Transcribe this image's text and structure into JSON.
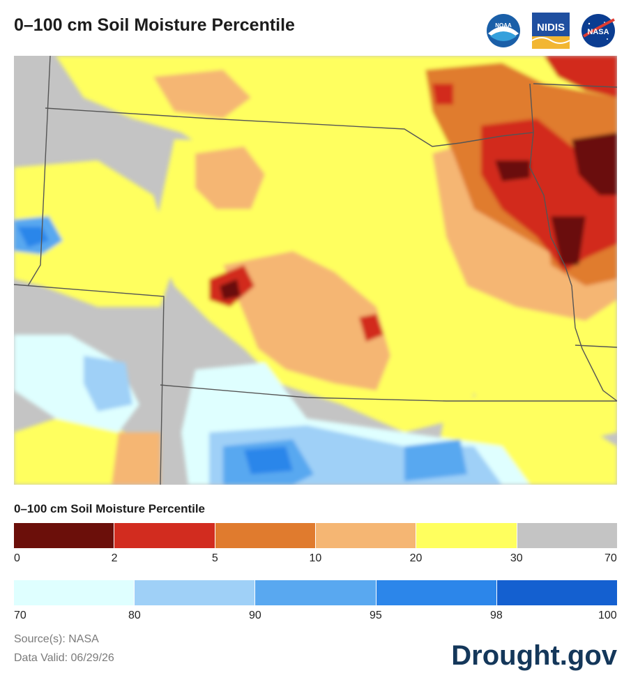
{
  "title": "0–100 cm Soil Moisture Percentile",
  "logos": [
    {
      "name": "noaa-logo",
      "text": "NOAA",
      "color": "#1a5fa8"
    },
    {
      "name": "nidis-logo",
      "text": "NIDIS",
      "color": "#1f4fa0"
    },
    {
      "name": "nasa-logo",
      "text": "NASA",
      "color": "#0b3d91"
    }
  ],
  "map": {
    "colors": {
      "c0_2": "#6b0f0a",
      "c2_5": "#d22c1f",
      "c5_10": "#e07b2e",
      "c10_20": "#f5b673",
      "c20_30": "#ffff5e",
      "c30_70": "#c4c4c4",
      "c70_80": "#dfffff",
      "c80_90": "#9fd0f7",
      "c90_95": "#59a8f0",
      "c95_98": "#2c86ea",
      "c98_100": "#1460d0",
      "border": "#555555"
    }
  },
  "legend": {
    "title": "0–100 cm Soil Moisture Percentile",
    "dry_colors": [
      "#6b0f0a",
      "#d22c1f",
      "#e07b2e",
      "#f5b673",
      "#ffff5e",
      "#c4c4c4"
    ],
    "dry_ticks": [
      "0",
      "2",
      "5",
      "10",
      "20",
      "30",
      "70"
    ],
    "wet_colors": [
      "#dfffff",
      "#9fd0f7",
      "#59a8f0",
      "#2c86ea",
      "#1460d0"
    ],
    "wet_ticks": [
      "70",
      "80",
      "90",
      "95",
      "98",
      "100"
    ]
  },
  "footer": {
    "source": "Source(s): NASA",
    "valid": "Data Valid: 06/29/26",
    "brand": "Drought.gov"
  }
}
